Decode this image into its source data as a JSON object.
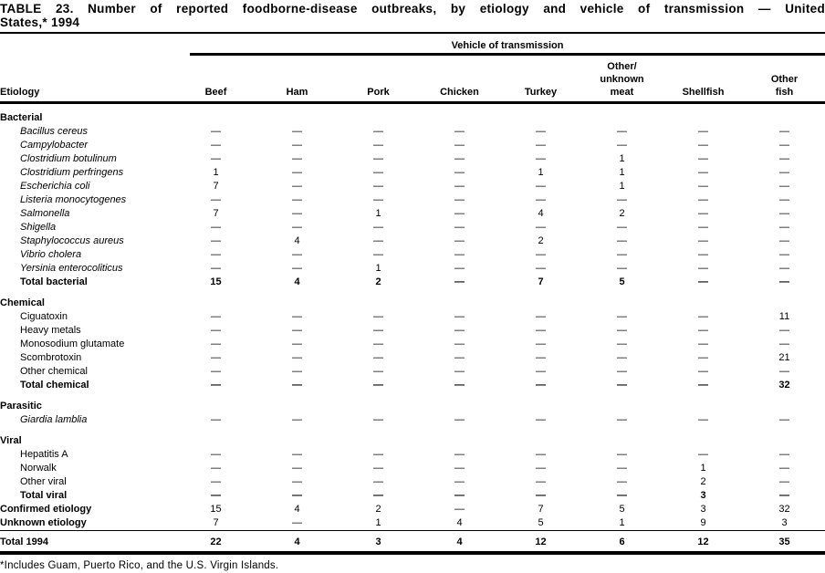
{
  "title_line1": "TABLE 23. Number of reported foodborne-disease outbreaks, by etiology and vehicle of transmission — United",
  "title_line2": "States,* 1994",
  "table": {
    "spanner": "Vehicle of transmission",
    "etiology_header": "Etiology",
    "col_headers": [
      "Beef",
      "Ham",
      "Pork",
      "Chicken",
      "Turkey",
      "Other/\nunknown\nmeat",
      "Shellfish",
      "Other\nfish"
    ],
    "rows": [
      {
        "label": "Bacterial",
        "style": "section",
        "cells": null
      },
      {
        "label": "Bacillus cereus",
        "style": "species",
        "cells": [
          "—",
          "—",
          "—",
          "—",
          "—",
          "—",
          "—",
          "—"
        ]
      },
      {
        "label": "Campylobacter",
        "style": "species",
        "cells": [
          "—",
          "—",
          "—",
          "—",
          "—",
          "—",
          "—",
          "—"
        ]
      },
      {
        "label": "Clostridium botulinum",
        "style": "species",
        "cells": [
          "—",
          "—",
          "—",
          "—",
          "—",
          "1",
          "—",
          "—"
        ]
      },
      {
        "label": "Clostridium perfringens",
        "style": "species",
        "cells": [
          "1",
          "—",
          "—",
          "—",
          "1",
          "1",
          "—",
          "—"
        ]
      },
      {
        "label": "Escherichia coli",
        "style": "species",
        "cells": [
          "7",
          "—",
          "—",
          "—",
          "—",
          "1",
          "—",
          "—"
        ]
      },
      {
        "label": "Listeria monocytogenes",
        "style": "species",
        "cells": [
          "—",
          "—",
          "—",
          "—",
          "—",
          "—",
          "—",
          "—"
        ]
      },
      {
        "label": "Salmonella",
        "style": "species",
        "cells": [
          "7",
          "—",
          "1",
          "—",
          "4",
          "2",
          "—",
          "—"
        ]
      },
      {
        "label": "Shigella",
        "style": "species",
        "cells": [
          "—",
          "—",
          "—",
          "—",
          "—",
          "—",
          "—",
          "—"
        ]
      },
      {
        "label": "Staphylococcus aureus",
        "style": "species",
        "cells": [
          "—",
          "4",
          "—",
          "—",
          "2",
          "—",
          "—",
          "—"
        ]
      },
      {
        "label": "Vibrio cholera",
        "style": "species",
        "cells": [
          "—",
          "—",
          "—",
          "—",
          "—",
          "—",
          "—",
          "—"
        ]
      },
      {
        "label": "Yersinia enterocoliticus",
        "style": "species",
        "cells": [
          "—",
          "—",
          "1",
          "—",
          "—",
          "—",
          "—",
          "—"
        ]
      },
      {
        "label": "Total bacterial",
        "style": "total",
        "cells": [
          "15",
          "4",
          "2",
          "—",
          "7",
          "5",
          "—",
          "—"
        ]
      },
      {
        "label": "Chemical",
        "style": "section",
        "cells": null
      },
      {
        "label": "Ciguatoxin",
        "style": "item",
        "cells": [
          "—",
          "—",
          "—",
          "—",
          "—",
          "—",
          "—",
          "11"
        ]
      },
      {
        "label": "Heavy metals",
        "style": "item",
        "cells": [
          "—",
          "—",
          "—",
          "—",
          "—",
          "—",
          "—",
          "—"
        ]
      },
      {
        "label": "Monosodium glutamate",
        "style": "item",
        "cells": [
          "—",
          "—",
          "—",
          "—",
          "—",
          "—",
          "—",
          "—"
        ]
      },
      {
        "label": "Scombrotoxin",
        "style": "item",
        "cells": [
          "—",
          "—",
          "—",
          "—",
          "—",
          "—",
          "—",
          "21"
        ]
      },
      {
        "label": "Other chemical",
        "style": "item",
        "cells": [
          "—",
          "—",
          "—",
          "—",
          "—",
          "—",
          "—",
          "—"
        ]
      },
      {
        "label": "Total chemical",
        "style": "total",
        "cells": [
          "—",
          "—",
          "—",
          "—",
          "—",
          "—",
          "—",
          "32"
        ]
      },
      {
        "label": "Parasitic",
        "style": "section",
        "cells": null
      },
      {
        "label": "Giardia lamblia",
        "style": "species",
        "cells": [
          "—",
          "—",
          "—",
          "—",
          "—",
          "—",
          "—",
          "—"
        ]
      },
      {
        "label": "Viral",
        "style": "section",
        "cells": null
      },
      {
        "label": "Hepatitis A",
        "style": "item",
        "cells": [
          "—",
          "—",
          "—",
          "—",
          "—",
          "—",
          "—",
          "—"
        ]
      },
      {
        "label": "Norwalk",
        "style": "item",
        "cells": [
          "—",
          "—",
          "—",
          "—",
          "—",
          "—",
          "1",
          "—"
        ]
      },
      {
        "label": "Other viral",
        "style": "item",
        "cells": [
          "—",
          "—",
          "—",
          "—",
          "—",
          "—",
          "2",
          "—"
        ]
      },
      {
        "label": "Total viral",
        "style": "total",
        "cells": [
          "—",
          "—",
          "—",
          "—",
          "—",
          "—",
          "3",
          "—"
        ]
      },
      {
        "label": "Confirmed etiology",
        "style": "summary",
        "cells": [
          "15",
          "4",
          "2",
          "—",
          "7",
          "5",
          "3",
          "32"
        ]
      },
      {
        "label": "Unknown etiology",
        "style": "summary",
        "cells": [
          "7",
          "—",
          "1",
          "4",
          "5",
          "1",
          "9",
          "3"
        ]
      },
      {
        "label": "Total 1994",
        "style": "grand",
        "cells": [
          "22",
          "4",
          "3",
          "4",
          "12",
          "6",
          "12",
          "35"
        ]
      }
    ]
  },
  "footnote": "*Includes Guam, Puerto Rico, and the U.S. Virgin Islands."
}
